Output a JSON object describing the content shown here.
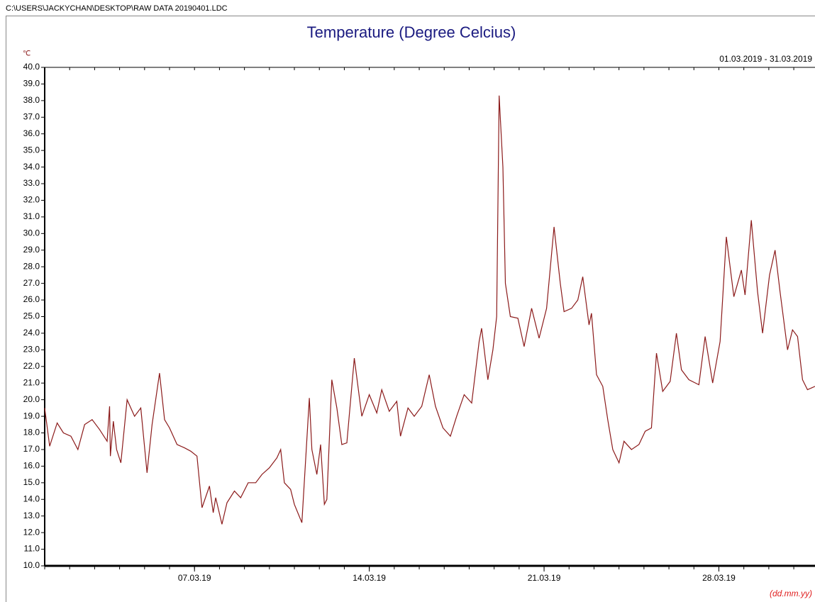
{
  "window": {
    "path": "C:\\USERS\\JACKYCHAN\\DESKTOP\\RAW DATA 20190401.LDC"
  },
  "chart_data": {
    "type": "line",
    "title": "Temperature (Degree Celcius)",
    "subtitle": "01.03.2019 - 31.03.2019",
    "ylabel": "℃",
    "xlabel": "(dd.mm.yy)",
    "x": [
      0,
      0.2,
      0.5,
      0.75,
      1.05,
      1.33,
      1.6,
      1.9,
      2.2,
      2.5,
      2.6,
      2.63,
      2.75,
      2.88,
      3.05,
      3.3,
      3.6,
      3.85,
      4.1,
      4.3,
      4.6,
      4.8,
      5.0,
      5.3,
      5.6,
      5.85,
      6.1,
      6.3,
      6.6,
      6.75,
      6.85,
      7.1,
      7.3,
      7.6,
      7.85,
      8.15,
      8.45,
      8.7,
      9.0,
      9.3,
      9.45,
      9.6,
      9.85,
      10.0,
      10.3,
      10.6,
      10.7,
      10.9,
      11.05,
      11.2,
      11.3,
      11.5,
      11.7,
      11.9,
      12.1,
      12.4,
      12.7,
      13.0,
      13.3,
      13.5,
      13.8,
      14.1,
      14.25,
      14.55,
      14.8,
      15.1,
      15.4,
      15.65,
      15.95,
      16.25,
      16.5,
      16.8,
      17.1,
      17.4,
      17.5,
      17.75,
      17.95,
      18.1,
      18.2,
      18.35,
      18.45,
      18.65,
      18.95,
      19.2,
      19.5,
      19.8,
      20.1,
      20.4,
      20.65,
      20.8,
      21.1,
      21.35,
      21.55,
      21.8,
      21.9,
      22.1,
      22.35,
      22.55,
      22.75,
      23.0,
      23.2,
      23.5,
      23.8,
      24.05,
      24.3,
      24.5,
      24.75,
      25.05,
      25.3,
      25.5,
      25.8,
      26.2,
      26.45,
      26.75,
      27.05,
      27.3,
      27.6,
      27.9,
      28.05,
      28.3,
      28.55,
      28.75,
      29.03,
      29.25,
      29.45,
      29.75,
      29.95,
      30.15,
      30.35,
      30.55,
      30.85
    ],
    "series": [
      {
        "name": "Temperature",
        "color": "#8b1a1a",
        "values": [
          19.5,
          17.2,
          18.6,
          18.0,
          17.8,
          17.0,
          18.5,
          18.8,
          18.2,
          17.5,
          19.6,
          16.6,
          18.7,
          17.0,
          16.2,
          20.0,
          19.0,
          19.5,
          15.6,
          18.5,
          21.6,
          18.8,
          18.3,
          17.3,
          17.1,
          16.9,
          16.6,
          13.5,
          14.8,
          13.2,
          14.1,
          12.5,
          13.8,
          14.5,
          14.1,
          15.0,
          15.0,
          15.5,
          15.9,
          16.5,
          17.0,
          15.0,
          14.6,
          13.7,
          12.6,
          20.1,
          17.0,
          15.5,
          17.3,
          13.7,
          14.0,
          21.2,
          19.5,
          17.3,
          17.4,
          22.5,
          19.0,
          20.3,
          19.2,
          20.6,
          19.3,
          19.9,
          17.8,
          19.5,
          19.0,
          19.6,
          21.5,
          19.6,
          18.3,
          17.8,
          19.0,
          20.3,
          19.8,
          23.5,
          24.3,
          21.2,
          23.0,
          25.0,
          38.3,
          34.0,
          27.0,
          25.0,
          24.9,
          23.2,
          25.5,
          23.7,
          25.5,
          30.4,
          27.0,
          25.3,
          25.5,
          26.0,
          27.4,
          24.5,
          25.2,
          21.5,
          20.8,
          18.8,
          17.0,
          16.2,
          17.5,
          17.0,
          17.3,
          18.1,
          18.3,
          22.8,
          20.5,
          21.1,
          24.0,
          21.8,
          21.2,
          20.9,
          23.8,
          21.0,
          23.5,
          29.8,
          26.2,
          27.8,
          26.3,
          30.8,
          26.5,
          24.0,
          27.5,
          29.0,
          26.5,
          23.0,
          24.2,
          23.8,
          21.2,
          20.6,
          20.8
        ]
      }
    ],
    "xlim": [
      0,
      30.85
    ],
    "xticks": [
      {
        "value": 6,
        "label": "07.03.19"
      },
      {
        "value": 13,
        "label": "14.03.19"
      },
      {
        "value": 20,
        "label": "21.03.19"
      },
      {
        "value": 27,
        "label": "28.03.19"
      }
    ],
    "xminorticks": [
      0,
      1,
      2,
      3,
      4,
      5,
      6,
      7,
      8,
      9,
      10,
      11,
      12,
      13,
      14,
      15,
      16,
      17,
      18,
      19,
      20,
      21,
      22,
      23,
      24,
      25,
      26,
      27,
      28,
      29,
      30
    ],
    "ylim": [
      10,
      40
    ],
    "yticks": [
      {
        "value": 10,
        "label": "10.0"
      },
      {
        "value": 11,
        "label": "11.0"
      },
      {
        "value": 12,
        "label": "12.0"
      },
      {
        "value": 13,
        "label": "13.0"
      },
      {
        "value": 14,
        "label": "14.0"
      },
      {
        "value": 15,
        "label": "15.0"
      },
      {
        "value": 16,
        "label": "16.0"
      },
      {
        "value": 17,
        "label": "17.0"
      },
      {
        "value": 18,
        "label": "18.0"
      },
      {
        "value": 19,
        "label": "19.0"
      },
      {
        "value": 20,
        "label": "20.0"
      },
      {
        "value": 21,
        "label": "21.0"
      },
      {
        "value": 22,
        "label": "22.0"
      },
      {
        "value": 23,
        "label": "23.0"
      },
      {
        "value": 24,
        "label": "24.0"
      },
      {
        "value": 25,
        "label": "25.0"
      },
      {
        "value": 26,
        "label": "26.0"
      },
      {
        "value": 27,
        "label": "27.0"
      },
      {
        "value": 28,
        "label": "28.0"
      },
      {
        "value": 29,
        "label": "29.0"
      },
      {
        "value": 30,
        "label": "30.0"
      },
      {
        "value": 31,
        "label": "31.0"
      },
      {
        "value": 32,
        "label": "32.0"
      },
      {
        "value": 33,
        "label": "33.0"
      },
      {
        "value": 34,
        "label": "34.0"
      },
      {
        "value": 35,
        "label": "35.0"
      },
      {
        "value": 36,
        "label": "36.0"
      },
      {
        "value": 37,
        "label": "37.0"
      },
      {
        "value": 38,
        "label": "38.0"
      },
      {
        "value": 39,
        "label": "39.0"
      },
      {
        "value": 40,
        "label": "40.0"
      }
    ]
  }
}
